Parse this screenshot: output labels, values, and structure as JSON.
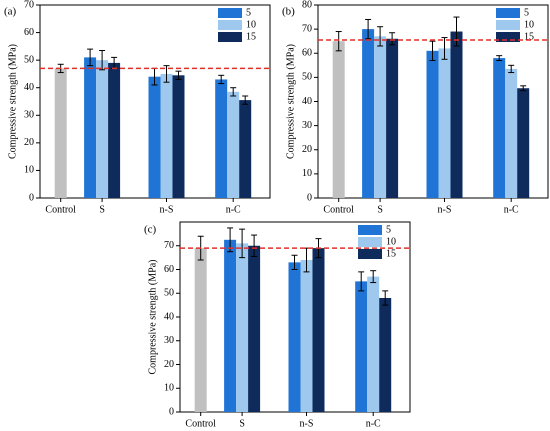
{
  "chart_data": [
    {
      "type": "bar",
      "label": "(a)",
      "ylabel": "Compressive strength (MPa)",
      "categories": [
        "Control",
        "S",
        "n-S",
        "n-C"
      ],
      "control_value": 47,
      "control_error": 1.5,
      "control_color": "#c0c0c0",
      "reference_line": 47,
      "reference_color": "#e0302a",
      "ylim": [
        0,
        70
      ],
      "yticks": [
        0,
        10,
        20,
        30,
        40,
        50,
        60,
        70
      ],
      "series": [
        {
          "name": "5",
          "color": "#1f74d6",
          "values": [
            null,
            51,
            44,
            43
          ],
          "errors": [
            null,
            3,
            3,
            1.5
          ]
        },
        {
          "name": "10",
          "color": "#9ec8ee",
          "values": [
            null,
            50,
            45,
            38.5
          ],
          "errors": [
            null,
            3.5,
            3,
            1.5
          ]
        },
        {
          "name": "15",
          "color": "#0e2b5c",
          "values": [
            null,
            49,
            44.5,
            35.5
          ],
          "errors": [
            null,
            2,
            1.5,
            1.5
          ]
        }
      ]
    },
    {
      "type": "bar",
      "label": "(b)",
      "ylabel": "Compressive strength (MPa)",
      "categories": [
        "Control",
        "S",
        "n-S",
        "n-C"
      ],
      "control_value": 65,
      "control_error": 4,
      "control_color": "#c0c0c0",
      "reference_line": 65.5,
      "reference_color": "#e0302a",
      "ylim": [
        0,
        80
      ],
      "yticks": [
        0,
        10,
        20,
        30,
        40,
        50,
        60,
        70,
        80
      ],
      "series": [
        {
          "name": "5",
          "color": "#1f74d6",
          "values": [
            null,
            70,
            61,
            58
          ],
          "errors": [
            null,
            4,
            4,
            1
          ]
        },
        {
          "name": "10",
          "color": "#9ec8ee",
          "values": [
            null,
            67,
            62,
            53.5
          ],
          "errors": [
            null,
            4,
            4.5,
            1.5
          ]
        },
        {
          "name": "15",
          "color": "#0e2b5c",
          "values": [
            null,
            66,
            69,
            45.5
          ],
          "errors": [
            null,
            2.5,
            6,
            1
          ]
        }
      ]
    },
    {
      "type": "bar",
      "label": "(c)",
      "ylabel": "Compressive strength (MPa)",
      "categories": [
        "Control",
        "S",
        "n-S",
        "n-C"
      ],
      "control_value": 69,
      "control_error": 5,
      "control_color": "#c0c0c0",
      "reference_line": 69,
      "reference_color": "#e0302a",
      "ylim": [
        0,
        80
      ],
      "yticks": [
        0,
        10,
        20,
        30,
        40,
        50,
        60,
        70
      ],
      "series": [
        {
          "name": "5",
          "color": "#1f74d6",
          "values": [
            null,
            72.5,
            63,
            55
          ],
          "errors": [
            null,
            5,
            3,
            4
          ]
        },
        {
          "name": "10",
          "color": "#9ec8ee",
          "values": [
            null,
            71,
            64,
            57
          ],
          "errors": [
            null,
            6,
            5,
            2.5
          ]
        },
        {
          "name": "15",
          "color": "#0e2b5c",
          "values": [
            null,
            70,
            69,
            48
          ],
          "errors": [
            null,
            4.5,
            4,
            3
          ]
        }
      ]
    }
  ]
}
